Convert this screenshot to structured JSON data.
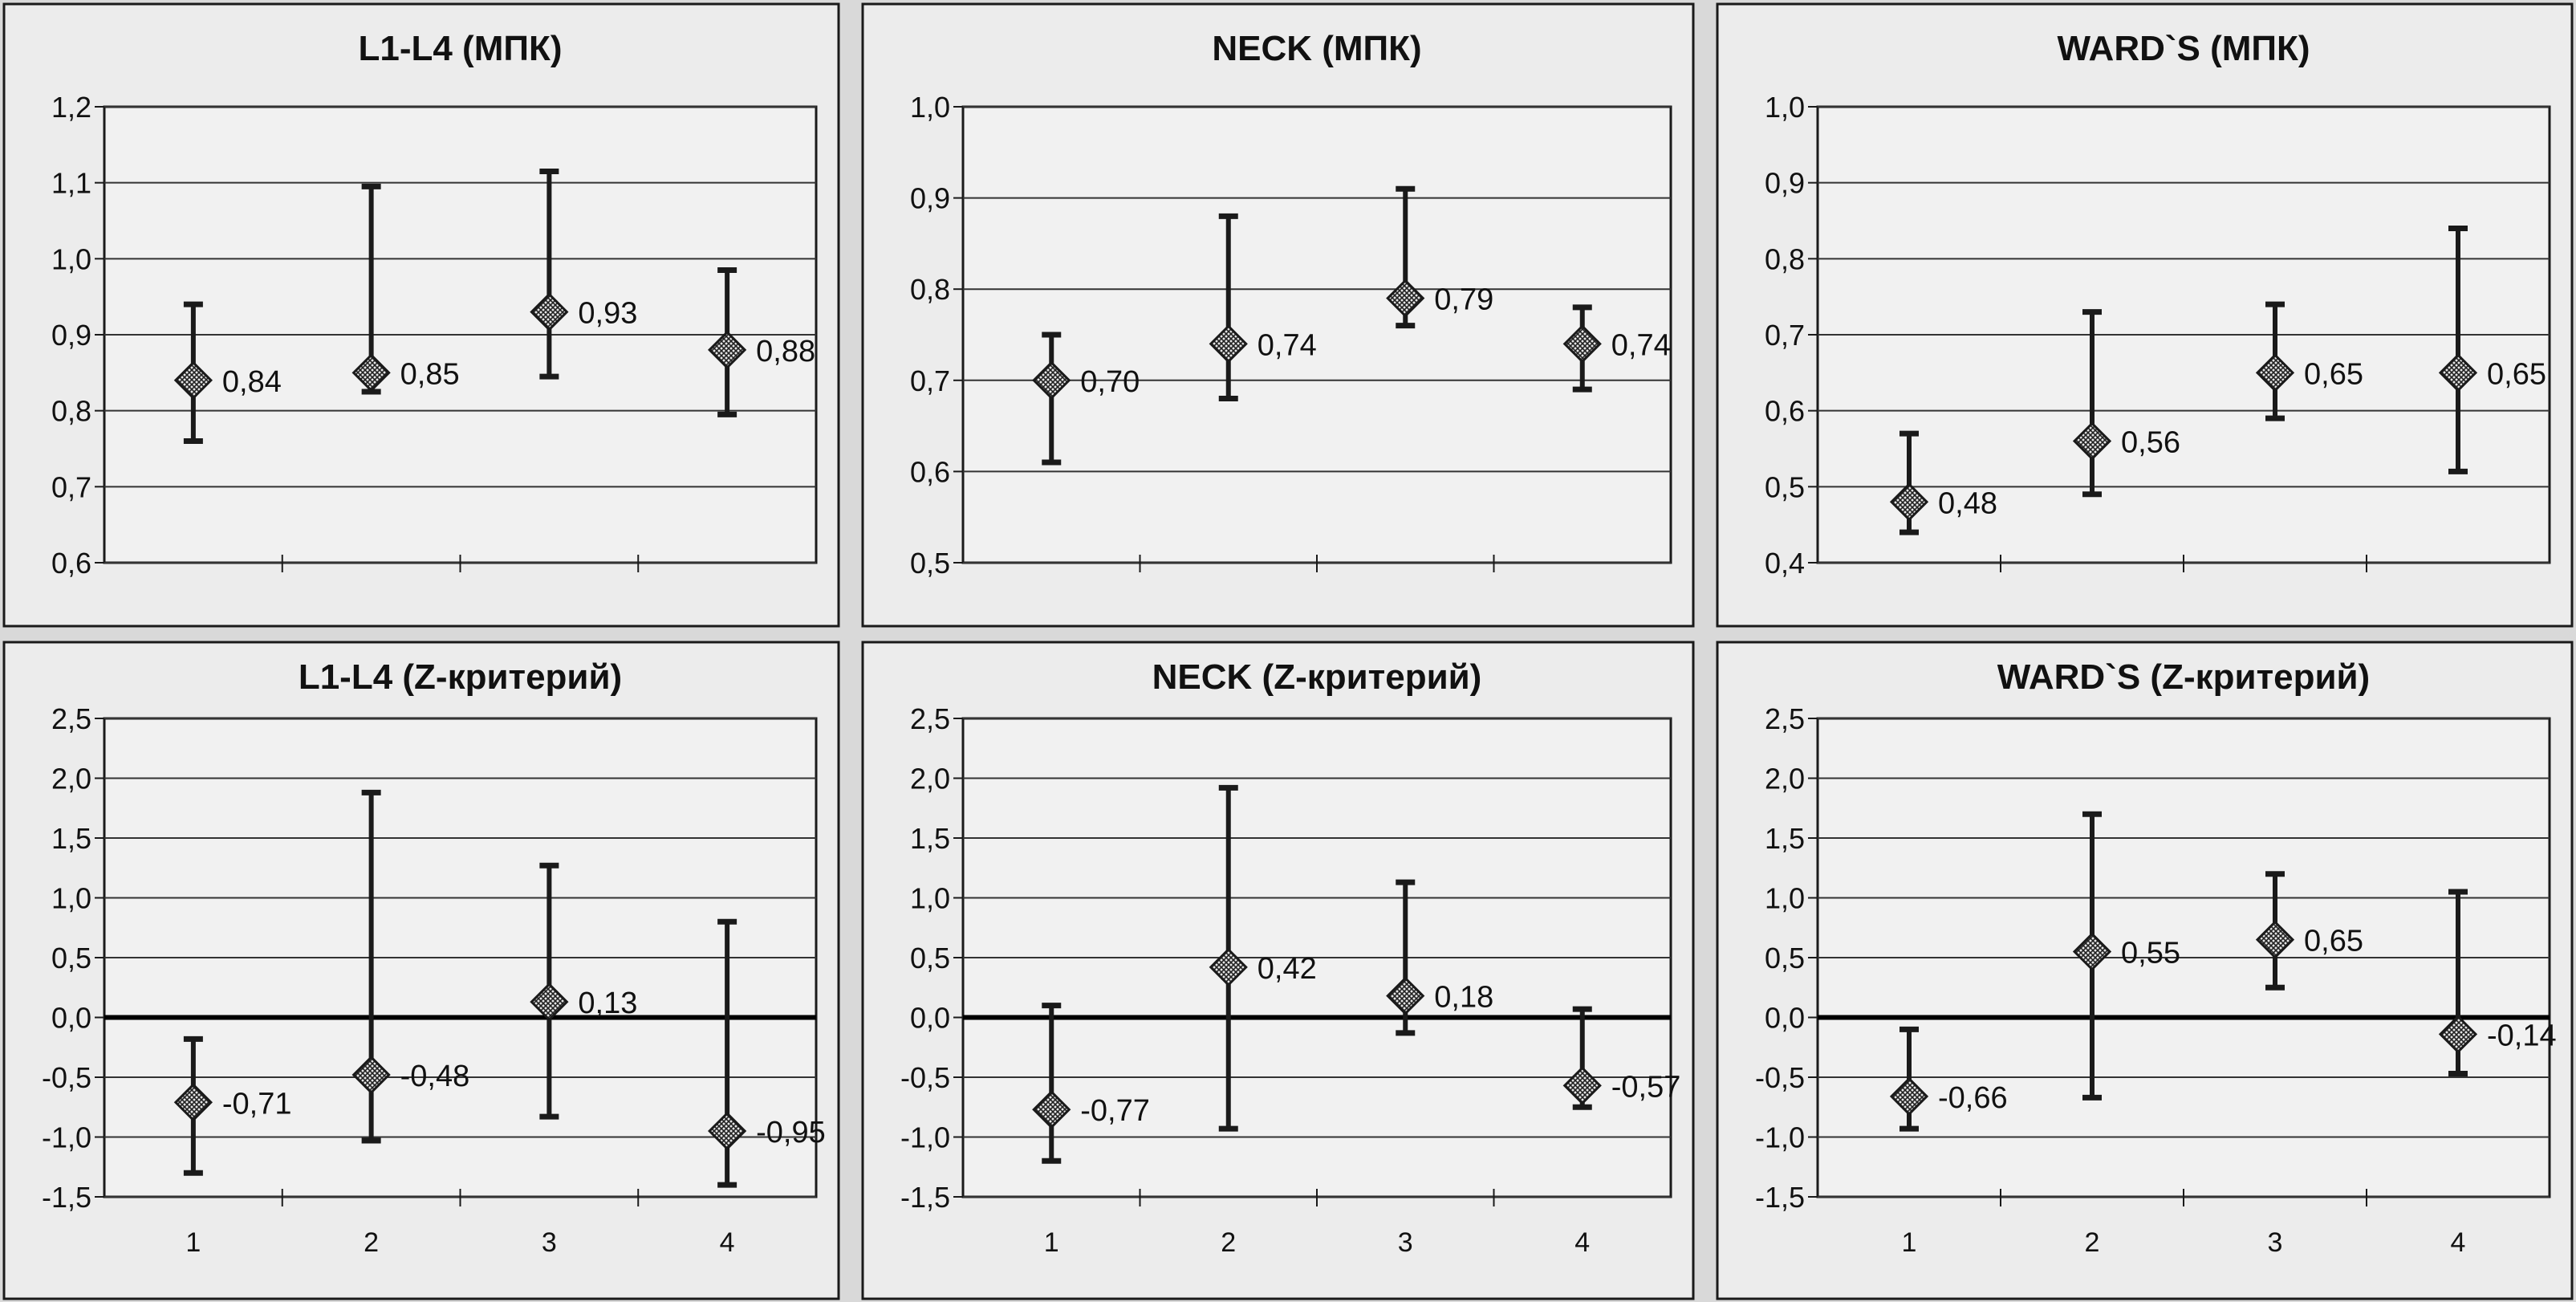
{
  "chart_data": [
    {
      "type": "scatter",
      "title": "L1-L4  (МПК)",
      "ylim": [
        0.6,
        1.2
      ],
      "yticks": [
        "0,6",
        "0,7",
        "0,8",
        "0,9",
        "1,0",
        "1,1",
        "1,2"
      ],
      "ytick_values": [
        0.6,
        0.7,
        0.8,
        0.9,
        1.0,
        1.1,
        1.2
      ],
      "categories": [],
      "x": [
        1,
        2,
        3,
        4
      ],
      "values": [
        0.84,
        0.85,
        0.93,
        0.88
      ],
      "labels": [
        "0,84",
        "0,85",
        "0,93",
        "0,88"
      ],
      "err_low": [
        0.76,
        0.825,
        0.845,
        0.795
      ],
      "err_high": [
        0.94,
        1.095,
        1.115,
        0.985
      ],
      "grid": true
    },
    {
      "type": "scatter",
      "title": "NECK  (МПК)",
      "ylim": [
        0.5,
        1.0
      ],
      "yticks": [
        "0,5",
        "0,6",
        "0,7",
        "0,8",
        "0,9",
        "1,0"
      ],
      "ytick_values": [
        0.5,
        0.6,
        0.7,
        0.8,
        0.9,
        1.0
      ],
      "categories": [],
      "x": [
        1,
        2,
        3,
        4
      ],
      "values": [
        0.7,
        0.74,
        0.79,
        0.74
      ],
      "labels": [
        "0,70",
        "0,74",
        "0,79",
        "0,74"
      ],
      "err_low": [
        0.61,
        0.68,
        0.76,
        0.69
      ],
      "err_high": [
        0.75,
        0.88,
        0.91,
        0.78
      ],
      "grid": true
    },
    {
      "type": "scatter",
      "title": "WARD`S  (МПК)",
      "ylim": [
        0.4,
        1.0
      ],
      "yticks": [
        "0,4",
        "0,5",
        "0,6",
        "0,7",
        "0,8",
        "0,9",
        "1,0"
      ],
      "ytick_values": [
        0.4,
        0.5,
        0.6,
        0.7,
        0.8,
        0.9,
        1.0
      ],
      "categories": [],
      "x": [
        1,
        2,
        3,
        4
      ],
      "values": [
        0.48,
        0.56,
        0.65,
        0.65
      ],
      "labels": [
        "0,48",
        "0,56",
        "0,65",
        "0,65"
      ],
      "err_low": [
        0.44,
        0.49,
        0.59,
        0.52
      ],
      "err_high": [
        0.57,
        0.73,
        0.74,
        0.84
      ],
      "grid": true
    },
    {
      "type": "scatter",
      "title": "L1-L4  (Z-критерий)",
      "ylim": [
        -1.5,
        2.5
      ],
      "yticks": [
        "-1,5",
        "-1,0",
        "-0,5",
        "0,0",
        "0,5",
        "1,0",
        "1,5",
        "2,0",
        "2,5"
      ],
      "ytick_values": [
        -1.5,
        -1.0,
        -0.5,
        0,
        0.5,
        1.0,
        1.5,
        2.0,
        2.5
      ],
      "categories": [
        "1",
        "2",
        "3",
        "4"
      ],
      "x": [
        1,
        2,
        3,
        4
      ],
      "values": [
        -0.71,
        -0.48,
        0.13,
        -0.95
      ],
      "labels": [
        "-0,71",
        "-0,48",
        "0,13",
        "-0,95"
      ],
      "err_low": [
        -1.3,
        -1.03,
        -0.83,
        -1.4
      ],
      "err_high": [
        -0.18,
        1.88,
        1.27,
        0.8
      ],
      "grid": true
    },
    {
      "type": "scatter",
      "title": "NECK  (Z-критерий)",
      "ylim": [
        -1.5,
        2.5
      ],
      "yticks": [
        "-1,5",
        "-1,0",
        "-0,5",
        "0,0",
        "0,5",
        "1,0",
        "1,5",
        "2,0",
        "2,5"
      ],
      "ytick_values": [
        -1.5,
        -1.0,
        -0.5,
        0,
        0.5,
        1.0,
        1.5,
        2.0,
        2.5
      ],
      "categories": [
        "1",
        "2",
        "3",
        "4"
      ],
      "x": [
        1,
        2,
        3,
        4
      ],
      "values": [
        -0.77,
        0.42,
        0.18,
        -0.57
      ],
      "labels": [
        "-0,77",
        "0,42",
        "0,18",
        "-0,57"
      ],
      "err_low": [
        -1.2,
        -0.93,
        -0.13,
        -0.75
      ],
      "err_high": [
        0.1,
        1.92,
        1.13,
        0.07
      ],
      "grid": true
    },
    {
      "type": "scatter",
      "title": "WARD`S  (Z-критерий)",
      "ylim": [
        -1.5,
        2.5
      ],
      "yticks": [
        "-1,5",
        "-1,0",
        "-0,5",
        "0,0",
        "0,5",
        "1,0",
        "1,5",
        "2,0",
        "2,5"
      ],
      "ytick_values": [
        -1.5,
        -1.0,
        -0.5,
        0,
        0.5,
        1.0,
        1.5,
        2.0,
        2.5
      ],
      "categories": [
        "1",
        "2",
        "3",
        "4"
      ],
      "x": [
        1,
        2,
        3,
        4
      ],
      "values": [
        -0.66,
        0.55,
        0.65,
        -0.14
      ],
      "labels": [
        "-0,66",
        "0,55",
        "0,65",
        "-0,14"
      ],
      "err_low": [
        -0.93,
        -0.67,
        0.25,
        -0.47
      ],
      "err_high": [
        -0.1,
        1.7,
        1.2,
        1.05
      ],
      "grid": true
    }
  ],
  "colors": {
    "ink": "#1a1a1a",
    "panel": "#ececec",
    "grid": "#333333"
  }
}
